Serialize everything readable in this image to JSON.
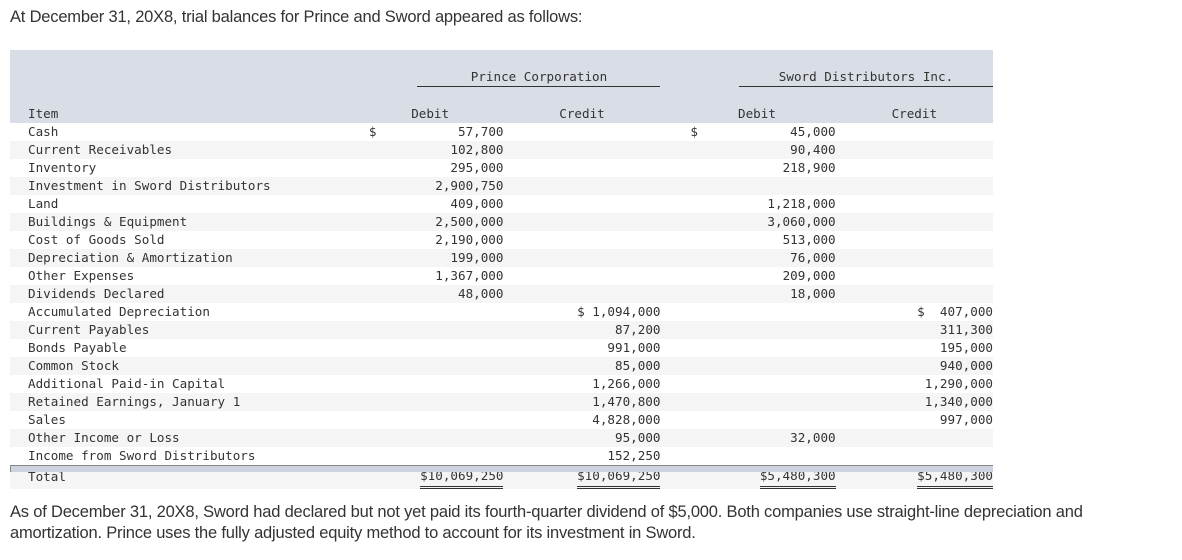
{
  "intro_text": "At December 31, 20X8, trial balances for Prince and Sword appeared as follows:",
  "table": {
    "group_headers": {
      "prince": "Prince Corporation",
      "sword": "Sword Distributors Inc."
    },
    "column_headers": {
      "item": "Item",
      "prince_debit": "Debit",
      "prince_credit": "Credit",
      "sword_debit": "Debit",
      "sword_credit": "Credit"
    },
    "rows": [
      {
        "item": "Cash",
        "prince_debit": "57,700",
        "prince_debit_dollar": "$",
        "prince_credit": "",
        "sword_debit": "45,000",
        "sword_debit_dollar": "$",
        "sword_credit": ""
      },
      {
        "item": "Current Receivables",
        "prince_debit": "102,800",
        "prince_credit": "",
        "sword_debit": "90,400",
        "sword_credit": ""
      },
      {
        "item": "Inventory",
        "prince_debit": "295,000",
        "prince_credit": "",
        "sword_debit": "218,900",
        "sword_credit": ""
      },
      {
        "item": "Investment in Sword Distributors",
        "prince_debit": "2,900,750",
        "prince_credit": "",
        "sword_debit": "",
        "sword_credit": ""
      },
      {
        "item": "Land",
        "prince_debit": "409,000",
        "prince_credit": "",
        "sword_debit": "1,218,000",
        "sword_credit": ""
      },
      {
        "item": "Buildings & Equipment",
        "prince_debit": "2,500,000",
        "prince_credit": "",
        "sword_debit": "3,060,000",
        "sword_credit": ""
      },
      {
        "item": "Cost of Goods Sold",
        "prince_debit": "2,190,000",
        "prince_credit": "",
        "sword_debit": "513,000",
        "sword_credit": ""
      },
      {
        "item": "Depreciation & Amortization",
        "prince_debit": "199,000",
        "prince_credit": "",
        "sword_debit": "76,000",
        "sword_credit": ""
      },
      {
        "item": "Other Expenses",
        "prince_debit": "1,367,000",
        "prince_credit": "",
        "sword_debit": "209,000",
        "sword_credit": ""
      },
      {
        "item": "Dividends Declared",
        "prince_debit": "48,000",
        "prince_credit": "",
        "sword_debit": "18,000",
        "sword_credit": ""
      },
      {
        "item": "Accumulated Depreciation",
        "prince_debit": "",
        "prince_credit": "$ 1,094,000",
        "sword_debit": "",
        "sword_credit": "$  407,000"
      },
      {
        "item": "Current Payables",
        "prince_debit": "",
        "prince_credit": "87,200",
        "sword_debit": "",
        "sword_credit": "311,300"
      },
      {
        "item": "Bonds Payable",
        "prince_debit": "",
        "prince_credit": "991,000",
        "sword_debit": "",
        "sword_credit": "195,000"
      },
      {
        "item": "Common Stock",
        "prince_debit": "",
        "prince_credit": "85,000",
        "sword_debit": "",
        "sword_credit": "940,000"
      },
      {
        "item": "Additional Paid-in Capital",
        "prince_debit": "",
        "prince_credit": "1,266,000",
        "sword_debit": "",
        "sword_credit": "1,290,000"
      },
      {
        "item": "Retained Earnings, January 1",
        "prince_debit": "",
        "prince_credit": "1,470,800",
        "sword_debit": "",
        "sword_credit": "1,340,000"
      },
      {
        "item": "Sales",
        "prince_debit": "",
        "prince_credit": "4,828,000",
        "sword_debit": "",
        "sword_credit": "997,000"
      },
      {
        "item": "Other Income or Loss",
        "prince_debit": "",
        "prince_credit": "95,000",
        "sword_debit": "32,000",
        "sword_credit": ""
      },
      {
        "item": "Income from Sword Distributors",
        "prince_debit": "",
        "prince_credit": "152,250",
        "sword_debit": "",
        "sword_credit": ""
      }
    ],
    "total": {
      "item": "Total",
      "prince_debit": "$10,069,250",
      "prince_credit": "$10,069,250",
      "sword_debit": "$5,480,300",
      "sword_credit": "$5,480,300"
    }
  },
  "note_text": "As of December 31, 20X8, Sword had declared but not yet paid its fourth-quarter dividend of $5,000. Both companies use straight-line depreciation and amortization. Prince uses the fully adjusted equity method to account for its investment in Sword.",
  "colors": {
    "header_bg": "#d9dde6",
    "alt_row_bg": "#f5f5f5",
    "bottom_bar_bg": "#ccd3df",
    "text": "#333333"
  }
}
